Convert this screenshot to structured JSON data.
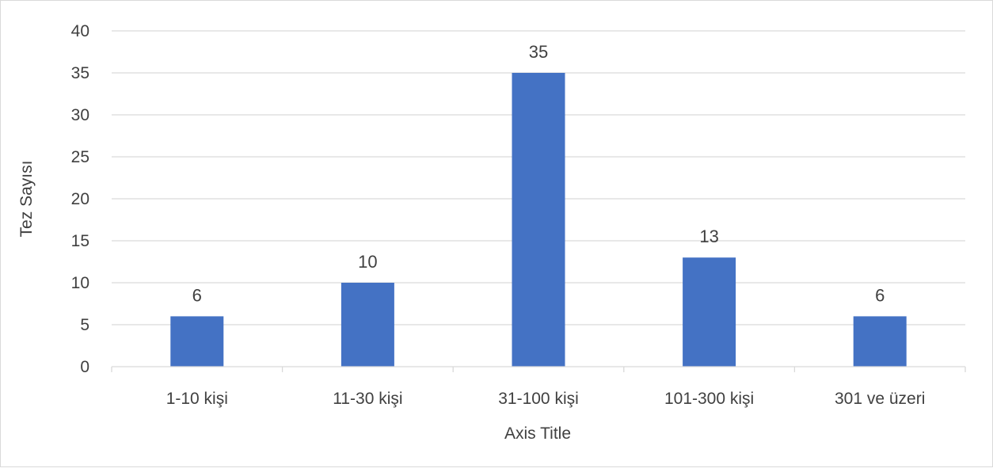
{
  "chart_data": {
    "type": "bar",
    "categories": [
      "1-10 kişi",
      "11-30 kişi",
      "31-100 kişi",
      "101-300 kişi",
      "301 ve üzeri"
    ],
    "values": [
      6,
      10,
      35,
      13,
      6
    ],
    "xlabel": "Axis Title",
    "ylabel": "Tez Sayısı",
    "ylim": [
      0,
      40
    ],
    "yticks": [
      0,
      5,
      10,
      15,
      20,
      25,
      30,
      35,
      40
    ],
    "grid": true,
    "data_labels": true,
    "bar_color": "#4472C4",
    "grid_color": "#d9d9d9"
  }
}
